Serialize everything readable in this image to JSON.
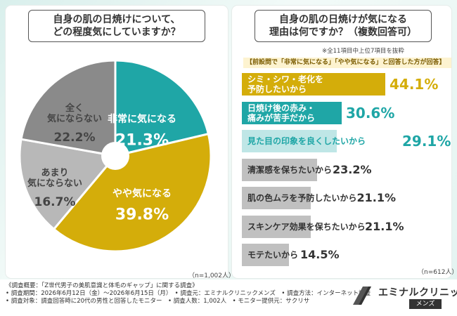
{
  "left_question": {
    "line1": "自身の肌の日焼けについて、",
    "line2": "どの程度気にしていますか？"
  },
  "right_question": {
    "line1": "自身の肌の日焼けが気になる",
    "line2": "理由は何ですか？（複数回答可）"
  },
  "left_n": "（n=1,002人）",
  "right_n": "（n=612人）",
  "right_top_note": "※全11項目中上位7項目を抜粋",
  "right_subtitle": "【前設問で「非常に気になる」「やや気になる」と回答した方が回答】",
  "footer": {
    "line1": "《調査概要：「Z世代男子の美肌意識と体毛のギャップ」に関する調査》",
    "line2": "• 調査期間：2026年6月12日（金）〜2026年6月15日（月）　• 調査元：エミナルクリニックメンズ　• 調査方法：インターネット調査",
    "line3": "• 調査対象：調査回答時に20代の男性と回答したモニター　• 調査人数：1,002人　• モニター提供元：サクリサ"
  },
  "logo": {
    "main": "エミナルクリニック",
    "sub": "メンズ"
  },
  "colors": {
    "teal": "#1fa6a6",
    "gold": "#d4ad0a",
    "grey_dark": "#8a8a8a",
    "grey_light": "#b8b8b8",
    "bar_grey": "#c0c0c0"
  },
  "chart_data": [
    {
      "type": "pie",
      "title": "自身の肌の日焼けについて、どの程度気にしていますか？",
      "slices": [
        {
          "label": "非常に気になる",
          "value": 21.3,
          "display": "21.3%",
          "color": "#1fa6a6"
        },
        {
          "label": "やや気になる",
          "value": 39.8,
          "display": "39.8%",
          "color": "#d4ad0a"
        },
        {
          "label": "あまり気にならない",
          "value": 16.7,
          "display": "16.7%",
          "color": "#b8b8b8"
        },
        {
          "label": "全く気にならない",
          "value": 22.2,
          "display": "22.2%",
          "color": "#8a8a8a"
        }
      ]
    },
    {
      "type": "bar",
      "title": "自身の肌の日焼けが気になる理由は何ですか？（複数回答可）",
      "orientation": "horizontal",
      "xlim": [
        0,
        44.1
      ],
      "bars": [
        {
          "label": [
            "シミ・シワ・老化を",
            "予防したいから"
          ],
          "value": 44.1,
          "display": "44.1%",
          "color": "#d4ad0a",
          "text_color": "#ffffff",
          "value_color": "#d4ad0a"
        },
        {
          "label": [
            "日焼け後の赤み・",
            "痛みが苦手だから"
          ],
          "value": 30.6,
          "display": "30.6%",
          "color": "#1fa6a6",
          "text_color": "#ffffff",
          "value_color": "#1fa6a6"
        },
        {
          "label": [
            "見た目の印象を良くしたいから"
          ],
          "value": 29.1,
          "display": "29.1%",
          "color": "#bfe6e6",
          "text_color": "#1fa6a6",
          "value_color": "#1fa6a6"
        },
        {
          "label": [
            "清潔感を保ちたいから"
          ],
          "value": 23.2,
          "display": "23.2%",
          "color": "#c0c0c0",
          "text_color": "#333333",
          "value_color": "#333333"
        },
        {
          "label": [
            "肌の色ムラを予防したいから"
          ],
          "value": 21.1,
          "display": "21.1%",
          "color": "#c0c0c0",
          "text_color": "#333333",
          "value_color": "#333333"
        },
        {
          "label": [
            "スキンケア効果を保ちたいから"
          ],
          "value": 21.1,
          "display": "21.1%",
          "color": "#c0c0c0",
          "text_color": "#333333",
          "value_color": "#333333"
        },
        {
          "label": [
            "モテたいから"
          ],
          "value": 14.5,
          "display": "14.5%",
          "color": "#c0c0c0",
          "text_color": "#333333",
          "value_color": "#333333"
        }
      ]
    }
  ]
}
